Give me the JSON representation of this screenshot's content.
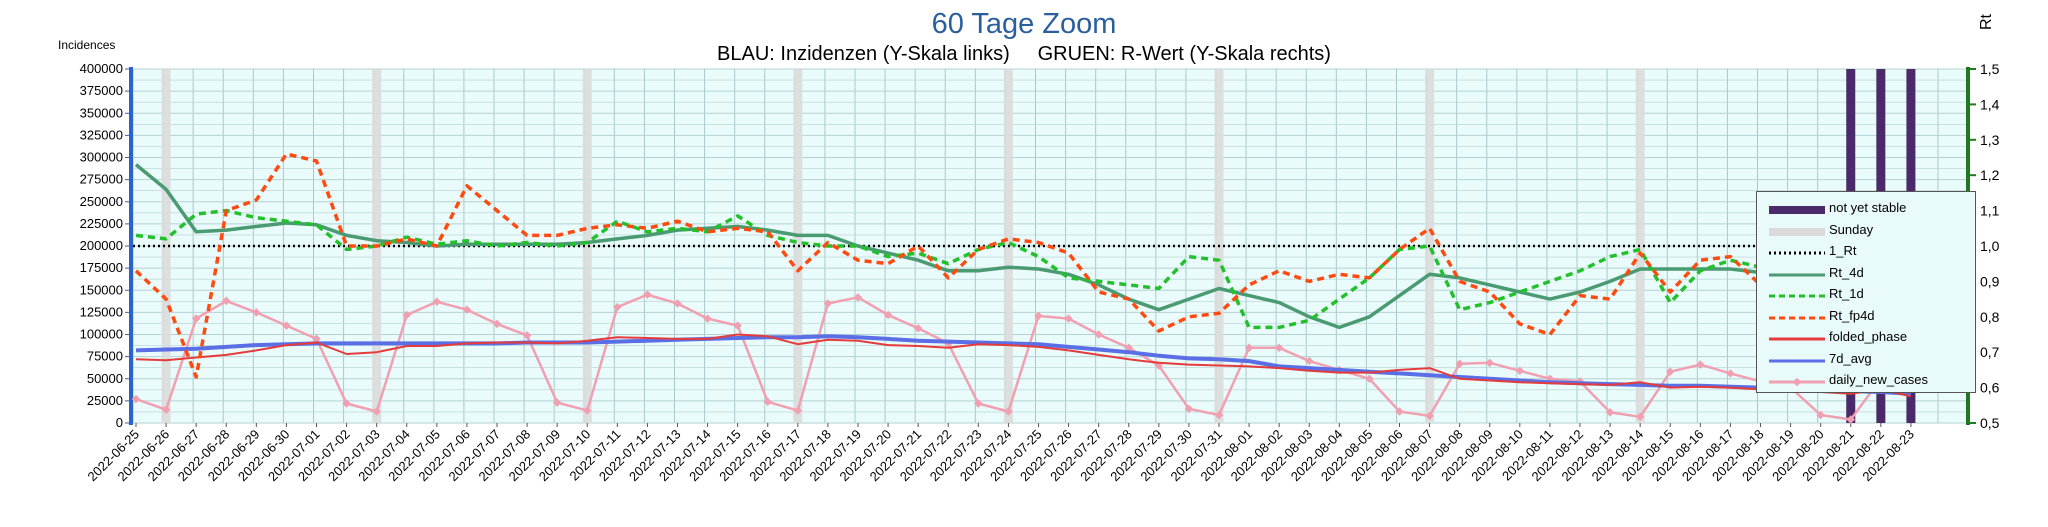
{
  "chart_data": {
    "type": "line",
    "title": "60 Tage Zoom",
    "subtitle": "BLAU: Inzidenzen (Y-Skala links)     GRUEN: R-Wert (Y-Skala rechts)",
    "ylabel_left": "Incidences",
    "ylabel_right": "Rt",
    "ylim_left": [
      0,
      400000
    ],
    "ylim_right": [
      0.5,
      1.5
    ],
    "yticks_left": [
      "0",
      "25000",
      "50000",
      "75000",
      "100000",
      "125000",
      "150000",
      "175000",
      "200000",
      "225000",
      "250000",
      "275000",
      "300000",
      "325000",
      "350000",
      "375000",
      "400000"
    ],
    "yticks_right": [
      "0,5",
      "0,6",
      "0,7",
      "0,8",
      "0,9",
      "1,0",
      "1,1",
      "1,2",
      "1,3",
      "1,4",
      "1,5"
    ],
    "grid": true,
    "legend_position": "right",
    "x": [
      "2022-06-25",
      "2022-06-26",
      "2022-06-27",
      "2022-06-28",
      "2022-06-29",
      "2022-06-30",
      "2022-07-01",
      "2022-07-02",
      "2022-07-03",
      "2022-07-04",
      "2022-07-05",
      "2022-07-06",
      "2022-07-07",
      "2022-07-08",
      "2022-07-09",
      "2022-07-10",
      "2022-07-11",
      "2022-07-12",
      "2022-07-13",
      "2022-07-14",
      "2022-07-15",
      "2022-07-16",
      "2022-07-17",
      "2022-07-18",
      "2022-07-19",
      "2022-07-20",
      "2022-07-21",
      "2022-07-22",
      "2022-07-23",
      "2022-07-24",
      "2022-07-25",
      "2022-07-26",
      "2022-07-27",
      "2022-07-28",
      "2022-07-29",
      "2022-07-30",
      "2022-07-31",
      "2022-08-01",
      "2022-08-02",
      "2022-08-03",
      "2022-08-04",
      "2022-08-05",
      "2022-08-06",
      "2022-08-07",
      "2022-08-08",
      "2022-08-09",
      "2022-08-10",
      "2022-08-11",
      "2022-08-12",
      "2022-08-13",
      "2022-08-14",
      "2022-08-15",
      "2022-08-16",
      "2022-08-17",
      "2022-08-18",
      "2022-08-19",
      "2022-08-20",
      "2022-08-21",
      "2022-08-22",
      "2022-08-23"
    ],
    "sundays": [
      "2022-06-26",
      "2022-07-03",
      "2022-07-10",
      "2022-07-17",
      "2022-07-24",
      "2022-07-31",
      "2022-08-07",
      "2022-08-14",
      "2022-08-21"
    ],
    "not_yet_stable": [
      "2022-08-21",
      "2022-08-22",
      "2022-08-23"
    ],
    "reference_line": {
      "name": "1_Rt",
      "value": 1.0,
      "axis": "right"
    },
    "series": [
      {
        "name": "daily_new_cases",
        "axis": "left",
        "color": "#f0a0b0",
        "values": [
          27000,
          15000,
          118000,
          138000,
          125000,
          110000,
          95000,
          22000,
          13000,
          122000,
          137000,
          128000,
          112000,
          99000,
          23000,
          14000,
          131000,
          145000,
          135000,
          118000,
          110000,
          24000,
          14000,
          135000,
          142000,
          122000,
          107000,
          90000,
          22000,
          13000,
          121000,
          118000,
          100000,
          85000,
          65000,
          16000,
          9000,
          85000,
          85000,
          70000,
          60000,
          50000,
          13000,
          8000,
          67000,
          68000,
          59000,
          50000,
          47000,
          12000,
          7000,
          58000,
          66000,
          56000,
          47000,
          40000,
          9000,
          4000,
          50000,
          42000
        ]
      },
      {
        "name": "7d_avg",
        "axis": "left",
        "color": "#5a6ee6",
        "values": [
          82000,
          83000,
          84000,
          86000,
          88000,
          89000,
          90000,
          90000,
          90000,
          90000,
          90000,
          90000,
          90000,
          91000,
          91000,
          91000,
          92000,
          93000,
          94000,
          95000,
          96000,
          97000,
          97000,
          98000,
          97000,
          95000,
          93000,
          92000,
          91000,
          90000,
          89000,
          86000,
          83000,
          80000,
          76000,
          73000,
          72000,
          70000,
          64000,
          62000,
          60000,
          58000,
          56000,
          54000,
          52000,
          50000,
          48000,
          46000,
          45000,
          44000,
          43000,
          42000,
          42000,
          41000,
          40000,
          39000,
          38000,
          36000,
          35000,
          33000
        ]
      },
      {
        "name": "folded_phase",
        "axis": "left",
        "color": "#e63b3b",
        "values": [
          72000,
          71000,
          74000,
          77000,
          82000,
          88000,
          91000,
          78000,
          80000,
          87000,
          87000,
          90000,
          91000,
          91000,
          90000,
          93000,
          97000,
          96000,
          95000,
          95000,
          100000,
          98000,
          89000,
          94000,
          93000,
          88000,
          87000,
          85000,
          89000,
          88000,
          86000,
          82000,
          77000,
          72000,
          68000,
          66000,
          65000,
          64000,
          62000,
          59000,
          57000,
          57000,
          60000,
          62000,
          50000,
          48000,
          46000,
          45000,
          44000,
          43000,
          46000,
          40000,
          41000,
          40000,
          38000,
          36000,
          35000,
          33000,
          38000,
          30000
        ]
      },
      {
        "name": "Rt_4d",
        "axis": "right",
        "color": "#4a9a72",
        "values": [
          1.23,
          1.16,
          1.04,
          1.045,
          1.055,
          1.065,
          1.06,
          1.03,
          1.015,
          1.01,
          1.0,
          1.005,
          1.005,
          1.005,
          1.005,
          1.01,
          1.02,
          1.03,
          1.045,
          1.05,
          1.055,
          1.045,
          1.03,
          1.03,
          1.0,
          0.98,
          0.96,
          0.93,
          0.93,
          0.94,
          0.935,
          0.92,
          0.89,
          0.85,
          0.82,
          0.85,
          0.88,
          0.86,
          0.84,
          0.8,
          0.77,
          0.8,
          0.86,
          0.92,
          0.91,
          0.89,
          0.87,
          0.85,
          0.87,
          0.9,
          0.935,
          0.935,
          0.935,
          0.935,
          0.925,
          0.925,
          0.935,
          0.94,
          0.935,
          0.87
        ]
      },
      {
        "name": "Rt_1d",
        "axis": "right",
        "color": "#22c02a",
        "values": [
          1.03,
          1.02,
          1.09,
          1.1,
          1.08,
          1.07,
          1.06,
          0.99,
          1.0,
          1.025,
          1.005,
          1.015,
          1.0,
          1.01,
          1.0,
          1.01,
          1.07,
          1.04,
          1.05,
          1.04,
          1.085,
          1.03,
          1.01,
          1.0,
          1.0,
          0.97,
          0.98,
          0.95,
          0.99,
          1.01,
          0.97,
          0.91,
          0.9,
          0.89,
          0.88,
          0.97,
          0.96,
          0.77,
          0.77,
          0.79,
          0.85,
          0.91,
          0.99,
          1.0,
          0.82,
          0.84,
          0.87,
          0.9,
          0.93,
          0.97,
          0.99,
          0.84,
          0.93,
          0.96,
          0.94,
          0.92,
          0.99,
          0.99,
          0.95,
          0.58
        ]
      },
      {
        "name": "Rt_fp4d",
        "axis": "right",
        "color": "#ff4a10",
        "values": [
          0.93,
          0.85,
          0.63,
          1.1,
          1.13,
          1.26,
          1.24,
          1.0,
          1.0,
          1.02,
          1.0,
          1.17,
          1.1,
          1.03,
          1.03,
          1.05,
          1.06,
          1.05,
          1.07,
          1.04,
          1.05,
          1.04,
          0.93,
          1.01,
          0.96,
          0.95,
          1.0,
          0.91,
          0.99,
          1.02,
          1.01,
          0.98,
          0.87,
          0.85,
          0.76,
          0.8,
          0.81,
          0.89,
          0.93,
          0.9,
          0.92,
          0.91,
          0.99,
          1.05,
          0.9,
          0.87,
          0.78,
          0.75,
          0.86,
          0.85,
          0.98,
          0.87,
          0.96,
          0.97,
          0.89,
          0.88,
          0.85,
          0.8,
          0.91,
          0.72
        ]
      }
    ]
  },
  "legend": [
    {
      "label": "not yet stable",
      "type": "thick",
      "color": "#4b2a6a"
    },
    {
      "label": "Sunday",
      "type": "thick",
      "color": "#dadada"
    },
    {
      "label": "1_Rt",
      "type": "dotted",
      "color": "#000000"
    },
    {
      "label": "Rt_4d",
      "type": "solid",
      "color": "#4a9a72"
    },
    {
      "label": "Rt_1d",
      "type": "dashed",
      "color": "#22c02a"
    },
    {
      "label": "Rt_fp4d",
      "type": "dashed",
      "color": "#ff4a10"
    },
    {
      "label": "folded_phase",
      "type": "solid",
      "color": "#e63b3b"
    },
    {
      "label": "7d_avg",
      "type": "solid",
      "color": "#5a6ee6"
    },
    {
      "label": "daily_new_cases",
      "type": "marker",
      "color": "#f0a0b0"
    }
  ]
}
